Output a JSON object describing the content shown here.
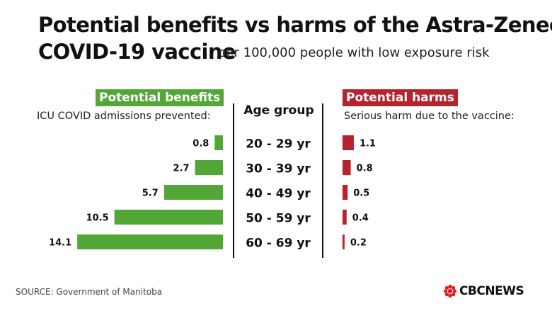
{
  "header": {
    "title_line1": "Potential benefits vs harms of the Astra-Zeneca",
    "title_line2": "COVID-19 vaccine",
    "subtitle": "per 100,000 people with low exposure risk"
  },
  "benefits": {
    "label": "Potential benefits",
    "sublabel": "ICU COVID admissions prevented:"
  },
  "harms": {
    "label": "Potential harms",
    "sublabel": "Serious harm due to the vaccine:"
  },
  "age_header": "Age group",
  "chart_data": {
    "type": "bar",
    "categories": [
      "20 - 29 yr",
      "30 - 39 yr",
      "40 - 49 yr",
      "50 - 59 yr",
      "60 - 69 yr"
    ],
    "series": [
      {
        "name": "Potential benefits",
        "values": [
          0.8,
          2.7,
          5.7,
          10.5,
          14.1
        ],
        "value_labels": [
          "0.8",
          "2.7",
          "5.7",
          "10.5",
          "14.1"
        ]
      },
      {
        "name": "Potential harms",
        "values": [
          1.1,
          0.8,
          0.5,
          0.4,
          0.2
        ],
        "value_labels": [
          "1.1",
          "0.8",
          "0.5",
          "0.4",
          "0.2"
        ]
      }
    ],
    "colors": {
      "benefits": "#52a737",
      "harms": "#b5232d"
    }
  },
  "footer": {
    "source": "SOURCE: Government of Manitoba",
    "logo_text": "CBCNEWS",
    "logo_color": "#e01b22"
  }
}
